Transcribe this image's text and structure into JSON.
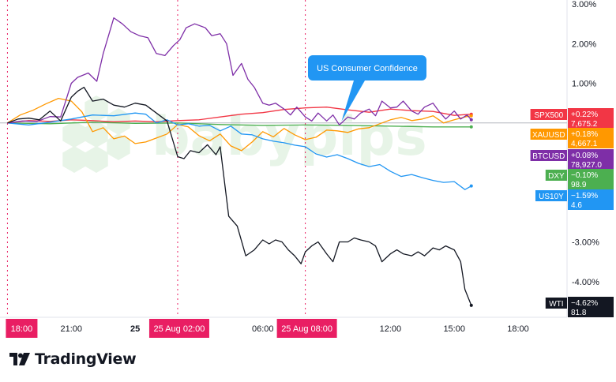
{
  "chart_data": {
    "type": "line",
    "y_unit": "percent change",
    "y_ticks": [
      "3.00%",
      "2.00%",
      "1.00%",
      "-3.00%",
      "-4.00%"
    ],
    "y_tick_values": [
      3,
      2,
      1,
      -3,
      -4
    ],
    "ylim": [
      -4.9,
      3.1
    ],
    "x_ticks": [
      {
        "label": "18:00",
        "t": 0,
        "highlight": true
      },
      {
        "label": "21:00",
        "t": 3,
        "highlight": false
      },
      {
        "label": "25",
        "t": 6,
        "highlight": false,
        "bold": true
      },
      {
        "label": "25 Aug  02:00",
        "t": 8,
        "highlight": true
      },
      {
        "label": "06:00",
        "t": 12,
        "highlight": false
      },
      {
        "label": "25 Aug  08:00",
        "t": 14,
        "highlight": true
      },
      {
        "label": "12:00",
        "t": 18,
        "highlight": false
      },
      {
        "label": "15:00",
        "t": 21,
        "highlight": false
      },
      {
        "label": "18:00",
        "t": 24,
        "highlight": false
      }
    ],
    "xlim": [
      -0.35,
      26.3
    ],
    "vlines": [
      0,
      8,
      14
    ],
    "annotation": {
      "text": "US Consumer Confidence",
      "t": 15.7,
      "y": 0.0
    },
    "series": [
      {
        "name": "SPX500",
        "change": "+0.22%",
        "price": "7,675.2",
        "color": "#f23645",
        "x": [
          0,
          1,
          2,
          3,
          4,
          5,
          6,
          7,
          8,
          9,
          10,
          11,
          12,
          13,
          14,
          15,
          16,
          17,
          18,
          19,
          20,
          21,
          21.8
        ],
        "y": [
          0,
          0.06,
          0.04,
          0.08,
          0.06,
          0.03,
          0.05,
          0.03,
          0.06,
          0.08,
          0.15,
          0.22,
          0.26,
          0.34,
          0.38,
          0.4,
          0.33,
          0.27,
          0.35,
          0.31,
          0.29,
          0.19,
          0.22
        ]
      },
      {
        "name": "XAUUSD",
        "change": "+0.18%",
        "price": "4,667.1",
        "color": "#ff9800",
        "x": [
          0,
          0.6,
          1.2,
          1.8,
          2.4,
          3,
          3.5,
          4,
          4.5,
          5,
          5.5,
          6,
          6.5,
          7,
          7.5,
          8,
          8.5,
          9,
          9.5,
          10,
          10.5,
          11,
          11.5,
          12,
          12.5,
          13,
          13.5,
          14,
          14.5,
          15,
          15.5,
          16,
          16.5,
          17,
          17.5,
          18,
          18.5,
          19,
          19.5,
          20,
          20.5,
          21,
          21.5,
          21.8
        ],
        "y": [
          0,
          0.2,
          0.32,
          0.48,
          0.62,
          0.55,
          0.28,
          -0.22,
          -0.12,
          -0.4,
          -0.33,
          -0.52,
          -0.48,
          -0.38,
          -0.28,
          -0.04,
          -0.1,
          -0.32,
          -0.45,
          -0.28,
          -0.58,
          -0.7,
          -0.48,
          -0.22,
          -0.35,
          -0.14,
          -0.3,
          -0.42,
          -0.36,
          -0.18,
          -0.2,
          -0.24,
          -0.15,
          -0.12,
          -0.02,
          0.08,
          0.14,
          0.06,
          0.1,
          0.18,
          0.0,
          0.08,
          0.15,
          0.18
        ]
      },
      {
        "name": "BTCUSD",
        "change": "+0.08%",
        "price": "78,927.0",
        "color": "#7e2ea7",
        "x": [
          0,
          0.7,
          1.4,
          2,
          2.5,
          3,
          3.3,
          3.8,
          4.2,
          4.5,
          5,
          5.4,
          5.8,
          6.2,
          6.6,
          7,
          7.4,
          7.8,
          8.1,
          8.4,
          8.8,
          9.3,
          9.6,
          10,
          10.3,
          10.6,
          11,
          11.3,
          11.6,
          12,
          12.3,
          12.6,
          13,
          13.3,
          13.6,
          14,
          14.3,
          14.6,
          15,
          15.3,
          15.6,
          16,
          16.3,
          16.6,
          17,
          17.3,
          17.6,
          18,
          18.3,
          18.6,
          19,
          19.3,
          19.6,
          20,
          20.3,
          20.6,
          21,
          21.3,
          21.6,
          21.8
        ],
        "y": [
          0,
          0.05,
          0.04,
          0.16,
          0.15,
          1.0,
          1.15,
          1.26,
          1.05,
          1.75,
          2.65,
          2.5,
          2.3,
          2.2,
          2.15,
          1.75,
          1.7,
          1.95,
          2.1,
          2.4,
          2.5,
          2.4,
          2.2,
          2.25,
          2.0,
          1.2,
          1.5,
          1.1,
          0.9,
          0.5,
          0.45,
          0.5,
          0.35,
          0.2,
          0.4,
          0.15,
          0.05,
          0.25,
          0.05,
          0.2,
          -0.05,
          0.15,
          0.1,
          0.25,
          0.35,
          0.18,
          0.55,
          0.38,
          0.4,
          0.55,
          0.3,
          0.22,
          0.4,
          0.5,
          0.28,
          0.1,
          0.3,
          0.1,
          0.2,
          0.08
        ]
      },
      {
        "name": "DXY",
        "change": "−0.10%",
        "price": "98.9",
        "color": "#4caf50",
        "x": [
          0,
          2,
          4,
          6,
          8,
          10,
          12,
          14,
          16,
          18,
          20,
          21.8
        ],
        "y": [
          0,
          -0.02,
          0.02,
          -0.01,
          0.0,
          -0.04,
          -0.06,
          -0.05,
          -0.06,
          -0.08,
          -0.1,
          -0.1
        ]
      },
      {
        "name": "US10Y",
        "change": "−1.59%",
        "price": "4.6",
        "color": "#2196f3",
        "x": [
          0,
          1,
          2,
          3,
          4,
          5,
          6,
          6.5,
          7,
          7.5,
          8,
          8.5,
          9,
          9.5,
          10,
          10.5,
          11,
          11.5,
          12,
          12.5,
          13,
          13.5,
          14,
          14.5,
          15,
          15.5,
          16,
          16.5,
          17,
          17.5,
          18,
          18.5,
          19,
          19.5,
          20,
          20.5,
          21,
          21.5,
          21.8
        ],
        "y": [
          0,
          -0.05,
          0.02,
          0.1,
          0.2,
          0.18,
          0.25,
          0.22,
          0.0,
          0.08,
          -0.05,
          -0.02,
          -0.08,
          -0.06,
          -0.2,
          -0.08,
          -0.28,
          -0.3,
          -0.4,
          -0.46,
          -0.5,
          -0.56,
          -0.6,
          -0.78,
          -0.86,
          -0.8,
          -0.9,
          -1.02,
          -1.1,
          -1.05,
          -1.22,
          -1.35,
          -1.3,
          -1.38,
          -1.45,
          -1.5,
          -1.48,
          -1.68,
          -1.59
        ]
      },
      {
        "name": "WTI",
        "change": "−4.62%",
        "price": "81.8",
        "color": "#131722",
        "x": [
          0,
          0.5,
          1,
          1.5,
          2,
          2.5,
          3,
          3.3,
          3.6,
          4,
          4.5,
          5,
          5.5,
          6,
          6.5,
          7,
          7.5,
          8,
          8.3,
          8.6,
          9,
          9.4,
          9.8,
          10,
          10.4,
          10.8,
          11.2,
          11.6,
          12,
          12.3,
          12.6,
          12.9,
          13.2,
          13.5,
          13.8,
          14,
          14.3,
          14.6,
          15,
          15.3,
          15.6,
          16,
          16.3,
          16.6,
          17,
          17.3,
          17.6,
          18,
          18.3,
          18.6,
          19,
          19.3,
          19.6,
          20,
          20.3,
          20.6,
          21,
          21.3,
          21.5,
          21.8
        ],
        "y": [
          0,
          0.1,
          0.12,
          0.08,
          0.3,
          0.05,
          0.65,
          0.8,
          0.9,
          0.55,
          0.6,
          0.45,
          0.4,
          0.5,
          0.45,
          0.25,
          0.05,
          -0.85,
          -0.9,
          -0.7,
          -0.75,
          -0.55,
          -0.8,
          -0.6,
          -2.35,
          -2.6,
          -3.35,
          -3.2,
          -2.95,
          -3.05,
          -2.95,
          -3.0,
          -3.2,
          -3.35,
          -3.55,
          -3.25,
          -3.1,
          -3.0,
          -3.3,
          -3.5,
          -3.0,
          -3.0,
          -2.9,
          -2.95,
          -3.0,
          -3.1,
          -3.5,
          -3.3,
          -3.2,
          -3.3,
          -3.35,
          -3.25,
          -3.35,
          -3.15,
          -3.2,
          -3.1,
          -3.2,
          -3.5,
          -4.2,
          -4.6
        ]
      }
    ]
  },
  "watermark": "babypips",
  "brand": {
    "name": "TradingView",
    "logo": "tradingview-logo"
  }
}
